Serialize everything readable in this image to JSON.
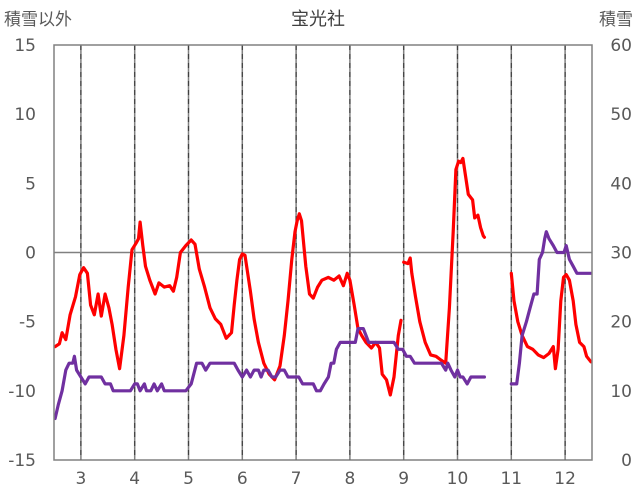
{
  "chart_data": {
    "type": "line",
    "title": "宝光社",
    "ylabel_left": "積雪以外",
    "ylabel_right": "積雪",
    "y_left_range": [
      -15,
      15
    ],
    "y_left_ticks": [
      "15",
      "10",
      "5",
      "0",
      "-5",
      "-10",
      "-15"
    ],
    "y_right_range": [
      0,
      60
    ],
    "y_right_ticks": [
      "60",
      "50",
      "40",
      "30",
      "20",
      "10",
      "0"
    ],
    "x_range": [
      2.5,
      12.5
    ],
    "x_ticks": [
      "3",
      "4",
      "5",
      "6",
      "7",
      "8",
      "9",
      "10",
      "11",
      "12"
    ],
    "grid": "dashed vertical at months, solid at half-months, horizontal at y=0",
    "colors": {
      "red_series": "#ff0000",
      "purple_series": "#7030a0",
      "axis": "#808080"
    },
    "series": [
      {
        "axis": "left",
        "color": "#ff0000",
        "segments": [
          [
            [
              2.52,
              -6.8
            ],
            [
              2.6,
              -6.6
            ],
            [
              2.65,
              -5.8
            ],
            [
              2.72,
              -6.3
            ],
            [
              2.8,
              -4.5
            ],
            [
              2.9,
              -3.2
            ],
            [
              2.98,
              -1.6
            ],
            [
              3.05,
              -1.1
            ],
            [
              3.12,
              -1.5
            ],
            [
              3.18,
              -3.8
            ],
            [
              3.25,
              -4.5
            ],
            [
              3.32,
              -3.0
            ],
            [
              3.38,
              -4.6
            ],
            [
              3.45,
              -3.0
            ],
            [
              3.52,
              -4.0
            ],
            [
              3.58,
              -5.2
            ],
            [
              3.65,
              -7.0
            ],
            [
              3.72,
              -8.4
            ],
            [
              3.8,
              -6.0
            ],
            [
              3.88,
              -2.5
            ],
            [
              3.95,
              0.2
            ],
            [
              4.03,
              0.7
            ],
            [
              4.07,
              1.0
            ],
            [
              4.1,
              2.2
            ],
            [
              4.15,
              0.5
            ],
            [
              4.2,
              -1.0
            ],
            [
              4.28,
              -2.0
            ],
            [
              4.38,
              -3.0
            ],
            [
              4.45,
              -2.2
            ],
            [
              4.55,
              -2.5
            ],
            [
              4.65,
              -2.4
            ],
            [
              4.72,
              -2.8
            ],
            [
              4.78,
              -1.8
            ],
            [
              4.85,
              0.0
            ],
            [
              4.95,
              0.5
            ],
            [
              5.05,
              0.9
            ],
            [
              5.12,
              0.6
            ],
            [
              5.2,
              -1.2
            ],
            [
              5.3,
              -2.5
            ],
            [
              5.4,
              -4.0
            ],
            [
              5.5,
              -4.8
            ],
            [
              5.6,
              -5.2
            ],
            [
              5.7,
              -6.2
            ],
            [
              5.8,
              -5.8
            ],
            [
              5.85,
              -3.8
            ],
            [
              5.9,
              -2.0
            ],
            [
              5.95,
              -0.5
            ],
            [
              6.0,
              -0.1
            ],
            [
              6.05,
              -0.2
            ],
            [
              6.1,
              -1.5
            ],
            [
              6.15,
              -2.8
            ],
            [
              6.22,
              -4.8
            ],
            [
              6.3,
              -6.5
            ],
            [
              6.4,
              -8.0
            ],
            [
              6.5,
              -8.8
            ],
            [
              6.6,
              -9.2
            ],
            [
              6.7,
              -8.2
            ],
            [
              6.78,
              -6.0
            ],
            [
              6.85,
              -3.5
            ],
            [
              6.92,
              -0.5
            ],
            [
              6.98,
              1.5
            ],
            [
              7.02,
              2.3
            ],
            [
              7.06,
              2.8
            ],
            [
              7.1,
              2.3
            ],
            [
              7.18,
              -1.0
            ],
            [
              7.25,
              -3.0
            ],
            [
              7.32,
              -3.3
            ],
            [
              7.4,
              -2.5
            ],
            [
              7.48,
              -2.0
            ],
            [
              7.6,
              -1.8
            ],
            [
              7.7,
              -2.0
            ],
            [
              7.8,
              -1.7
            ],
            [
              7.88,
              -2.4
            ],
            [
              7.95,
              -1.5
            ],
            [
              8.0,
              -2.0
            ],
            [
              8.08,
              -3.8
            ],
            [
              8.15,
              -5.5
            ],
            [
              8.22,
              -6.0
            ],
            [
              8.3,
              -6.5
            ],
            [
              8.4,
              -6.9
            ],
            [
              8.48,
              -6.5
            ],
            [
              8.55,
              -6.9
            ],
            [
              8.6,
              -8.8
            ],
            [
              8.68,
              -9.2
            ],
            [
              8.75,
              -10.3
            ],
            [
              8.82,
              -9.0
            ],
            [
              8.9,
              -6.0
            ],
            [
              8.95,
              -4.9
            ]
          ],
          [
            [
              9.0,
              -0.7
            ],
            [
              9.08,
              -0.8
            ],
            [
              9.12,
              -0.4
            ],
            [
              9.15,
              -1.5
            ],
            [
              9.22,
              -3.2
            ],
            [
              9.3,
              -5.0
            ],
            [
              9.4,
              -6.5
            ],
            [
              9.5,
              -7.4
            ],
            [
              9.6,
              -7.5
            ],
            [
              9.7,
              -7.8
            ],
            [
              9.78,
              -8.0
            ],
            [
              9.85,
              -4.0
            ],
            [
              9.92,
              1.5
            ],
            [
              9.97,
              6.0
            ],
            [
              10.02,
              6.6
            ],
            [
              10.06,
              6.5
            ],
            [
              10.1,
              6.8
            ],
            [
              10.15,
              5.5
            ],
            [
              10.2,
              4.2
            ],
            [
              10.28,
              3.8
            ],
            [
              10.32,
              2.5
            ],
            [
              10.38,
              2.7
            ],
            [
              10.43,
              1.8
            ],
            [
              10.48,
              1.2
            ],
            [
              10.5,
              1.1
            ]
          ],
          [
            [
              11.0,
              -1.5
            ],
            [
              11.05,
              -3.5
            ],
            [
              11.12,
              -5.0
            ],
            [
              11.2,
              -6.0
            ],
            [
              11.3,
              -6.8
            ],
            [
              11.4,
              -7.0
            ],
            [
              11.5,
              -7.4
            ],
            [
              11.6,
              -7.6
            ],
            [
              11.7,
              -7.3
            ],
            [
              11.78,
              -6.8
            ],
            [
              11.82,
              -8.4
            ],
            [
              11.87,
              -7.0
            ],
            [
              11.92,
              -3.5
            ],
            [
              11.97,
              -1.8
            ],
            [
              12.02,
              -1.6
            ],
            [
              12.08,
              -2.0
            ],
            [
              12.15,
              -3.5
            ],
            [
              12.2,
              -5.2
            ],
            [
              12.27,
              -6.5
            ],
            [
              12.35,
              -6.8
            ],
            [
              12.4,
              -7.5
            ],
            [
              12.48,
              -7.9
            ]
          ]
        ]
      },
      {
        "axis": "right",
        "color": "#7030a0",
        "segments": [
          [
            [
              2.52,
              6
            ],
            [
              2.58,
              8
            ],
            [
              2.65,
              10
            ],
            [
              2.72,
              13
            ],
            [
              2.78,
              14
            ],
            [
              2.85,
              14
            ],
            [
              2.88,
              15
            ],
            [
              2.92,
              13
            ],
            [
              3.0,
              12
            ],
            [
              3.08,
              11
            ],
            [
              3.15,
              12
            ],
            [
              3.25,
              12
            ],
            [
              3.38,
              12
            ],
            [
              3.45,
              11
            ],
            [
              3.5,
              11
            ],
            [
              3.55,
              11
            ],
            [
              3.6,
              10
            ],
            [
              3.7,
              10
            ],
            [
              3.8,
              10
            ],
            [
              3.92,
              10
            ],
            [
              4.0,
              11
            ],
            [
              4.05,
              11
            ],
            [
              4.1,
              10
            ],
            [
              4.18,
              11
            ],
            [
              4.22,
              10
            ],
            [
              4.3,
              10
            ],
            [
              4.36,
              11
            ],
            [
              4.42,
              10
            ],
            [
              4.5,
              11
            ],
            [
              4.55,
              10
            ],
            [
              4.65,
              10
            ],
            [
              4.75,
              10
            ],
            [
              4.85,
              10
            ],
            [
              4.95,
              10
            ],
            [
              5.05,
              11
            ],
            [
              5.15,
              14
            ],
            [
              5.25,
              14
            ],
            [
              5.32,
              13
            ],
            [
              5.4,
              14
            ],
            [
              5.5,
              14
            ],
            [
              5.6,
              14
            ],
            [
              5.72,
              14
            ],
            [
              5.85,
              14
            ],
            [
              5.92,
              13
            ],
            [
              6.0,
              12
            ],
            [
              6.08,
              13
            ],
            [
              6.15,
              12
            ],
            [
              6.22,
              13
            ],
            [
              6.3,
              13
            ],
            [
              6.35,
              12
            ],
            [
              6.4,
              13
            ],
            [
              6.48,
              13
            ],
            [
              6.55,
              12
            ],
            [
              6.62,
              12
            ],
            [
              6.7,
              13
            ],
            [
              6.78,
              13
            ],
            [
              6.85,
              12
            ],
            [
              6.95,
              12
            ],
            [
              7.05,
              12
            ],
            [
              7.12,
              11
            ],
            [
              7.22,
              11
            ],
            [
              7.32,
              11
            ],
            [
              7.38,
              10
            ],
            [
              7.45,
              10
            ],
            [
              7.52,
              11
            ],
            [
              7.6,
              12
            ],
            [
              7.65,
              14
            ],
            [
              7.7,
              14
            ],
            [
              7.75,
              16
            ],
            [
              7.82,
              17
            ],
            [
              7.9,
              17
            ],
            [
              8.0,
              17
            ],
            [
              8.1,
              17
            ],
            [
              8.15,
              19
            ],
            [
              8.2,
              19
            ],
            [
              8.25,
              19
            ],
            [
              8.3,
              18
            ],
            [
              8.35,
              17
            ],
            [
              8.45,
              17
            ],
            [
              8.55,
              17
            ],
            [
              8.65,
              17
            ],
            [
              8.75,
              17
            ],
            [
              8.82,
              17
            ],
            [
              8.9,
              16
            ],
            [
              8.98,
              16
            ],
            [
              9.05,
              15
            ],
            [
              9.12,
              15
            ],
            [
              9.2,
              14
            ],
            [
              9.3,
              14
            ],
            [
              9.4,
              14
            ],
            [
              9.5,
              14
            ],
            [
              9.6,
              14
            ],
            [
              9.7,
              14
            ],
            [
              9.78,
              13
            ],
            [
              9.82,
              14
            ],
            [
              9.88,
              13
            ],
            [
              9.95,
              12
            ],
            [
              10.0,
              13
            ],
            [
              10.05,
              12
            ],
            [
              10.1,
              12
            ],
            [
              10.18,
              11
            ],
            [
              10.25,
              12
            ],
            [
              10.32,
              12
            ],
            [
              10.38,
              12
            ],
            [
              10.45,
              12
            ],
            [
              10.5,
              12
            ]
          ],
          [
            [
              11.0,
              11
            ],
            [
              11.05,
              11
            ],
            [
              11.1,
              11
            ],
            [
              11.15,
              14
            ],
            [
              11.2,
              18
            ],
            [
              11.28,
              20
            ],
            [
              11.35,
              22
            ],
            [
              11.42,
              24
            ],
            [
              11.48,
              24
            ],
            [
              11.52,
              29
            ],
            [
              11.58,
              30
            ],
            [
              11.62,
              32
            ],
            [
              11.65,
              33
            ],
            [
              11.7,
              32
            ],
            [
              11.78,
              31
            ],
            [
              11.85,
              30
            ],
            [
              11.92,
              30
            ],
            [
              11.98,
              30
            ],
            [
              12.02,
              31
            ],
            [
              12.08,
              29
            ],
            [
              12.15,
              28
            ],
            [
              12.22,
              27
            ],
            [
              12.3,
              27
            ],
            [
              12.38,
              27
            ],
            [
              12.48,
              27
            ]
          ]
        ]
      }
    ]
  }
}
